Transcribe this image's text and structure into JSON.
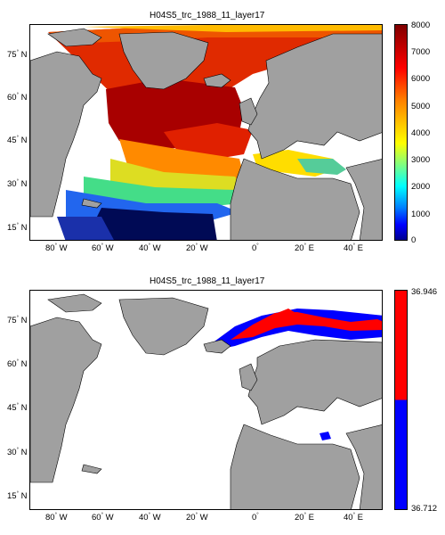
{
  "map1": {
    "title": "H04S5_trc_1988_11_layer17",
    "lat_ticks": [
      "75",
      "60",
      "45",
      "30",
      "15"
    ],
    "lon_ticks": [
      "80",
      "60",
      "40",
      "20",
      "0",
      "20",
      "40"
    ],
    "lon_suffix": [
      "W",
      "W",
      "W",
      "W",
      "",
      "E",
      "E"
    ],
    "lat_suffix": "N",
    "colorbar": {
      "labels": [
        "8000",
        "7000",
        "6000",
        "5000",
        "4000",
        "3000",
        "2000",
        "1000",
        "0"
      ],
      "min": 0,
      "max": 8000,
      "colormap": "jet"
    },
    "land_color": "#a0a0a0"
  },
  "map2": {
    "title": "H04S5_trc_1988_11_layer17",
    "lat_ticks": [
      "75",
      "60",
      "45",
      "30",
      "15"
    ],
    "lon_ticks": [
      "80",
      "60",
      "40",
      "20",
      "0",
      "20",
      "40"
    ],
    "lon_suffix": [
      "W",
      "W",
      "W",
      "W",
      "",
      "E",
      "E"
    ],
    "lat_suffix": "N",
    "colorbar": {
      "max_label": "36.946",
      "min_label": "36.712",
      "colors": [
        "#ff0000",
        "#0000ff"
      ]
    },
    "land_color": "#a0a0a0"
  }
}
